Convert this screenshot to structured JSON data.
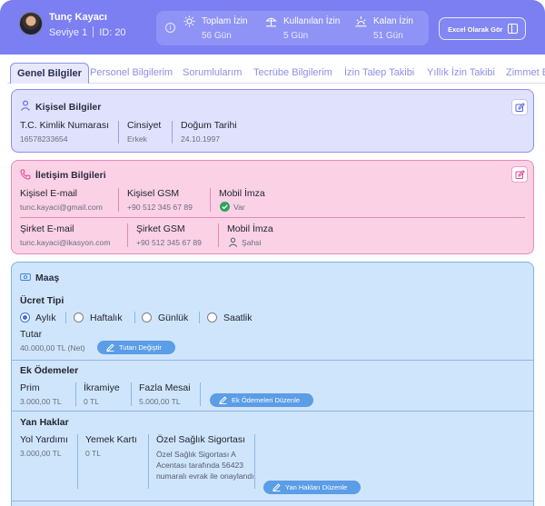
{
  "user": {
    "name": "Tunç Kayacı",
    "level": "Seviye 1",
    "id_text": "ID: 20"
  },
  "stats": [
    {
      "icon": "sun-icon",
      "label": "Toplam İzin",
      "value": "56 Gün"
    },
    {
      "icon": "beach-umbrella-icon",
      "label": "Kullanılan İzin",
      "value": "5 Gün"
    },
    {
      "icon": "sunrise-icon",
      "label": "Kalan İzin",
      "value": "51 Gün"
    }
  ],
  "excel_button": "Excel Olarak Gör",
  "tabs": [
    "Genel Bilgiler",
    "Personel Bilgilerim",
    "Sorumlularım",
    "Tecrübe Bilgilerim",
    "İzin Talep Takibi",
    "Yıllık İzin Takibi",
    "Zimmet B"
  ],
  "personal": {
    "title": "Kişisel Bilgiler",
    "fields": [
      {
        "label": "T.C. Kimlik Numarası",
        "value": "16578233654"
      },
      {
        "label": "Cinsiyet",
        "value": "Erkek"
      },
      {
        "label": "Doğum Tarihi",
        "value": "24.10.1997"
      }
    ]
  },
  "contact": {
    "title": "İletişim Bilgileri",
    "row1": [
      {
        "label": "Kişisel E-mail",
        "value": "tunc.kayaci@gmail.com"
      },
      {
        "label": "Kişisel GSM",
        "value": "+90 512 345 67 89"
      },
      {
        "label": "Mobil İmza",
        "value": "Var"
      }
    ],
    "row2": [
      {
        "label": "Şirket E-mail",
        "value": "tunc.kayaci@ikasyon.com"
      },
      {
        "label": "Şirket GSM",
        "value": "+90 512 345 67 89"
      },
      {
        "label": "Mobil İmza",
        "value": "Şahsi"
      }
    ]
  },
  "salary": {
    "title": "Maaş",
    "wage_type_label": "Ücret Tipi",
    "options": [
      "Aylık",
      "Haftalık",
      "Günlük",
      "Saatlik"
    ],
    "selected": "Aylık",
    "amount_label": "Tutar",
    "amount_value": "40.000,00 TL (Net)",
    "change_amount_button": "Tutarı Değiştir",
    "extra_title": "Ek Ödemeler",
    "extras": [
      {
        "label": "Prim",
        "value": "3.000,00 TL"
      },
      {
        "label": "İkramiye",
        "value": "0 TL"
      },
      {
        "label": "Fazla Mesai",
        "value": "5.000,00 TL"
      }
    ],
    "edit_extras_button": "Ek Ödemeleri Düzenle",
    "benefits_title": "Yan Haklar",
    "benefits": [
      {
        "label": "Yol Yardımı",
        "value": "3.000,00 TL"
      },
      {
        "label": "Yemek Kartı",
        "value": "0 TL"
      },
      {
        "label": "Özel Sağlık Sigortası",
        "value": "Özel Sağlık Sigortası A Acentası tarafında 56423 numaralı evrak ile onaylandı."
      }
    ],
    "edit_benefits_button": "Yan Hakları Düzenle"
  },
  "colors": {
    "header": "#7b7ff2",
    "personal_bg": "#e0e1fd",
    "contact_bg": "#fbd1e6",
    "salary_bg": "#cfe5fb",
    "button": "#5b9de6"
  }
}
